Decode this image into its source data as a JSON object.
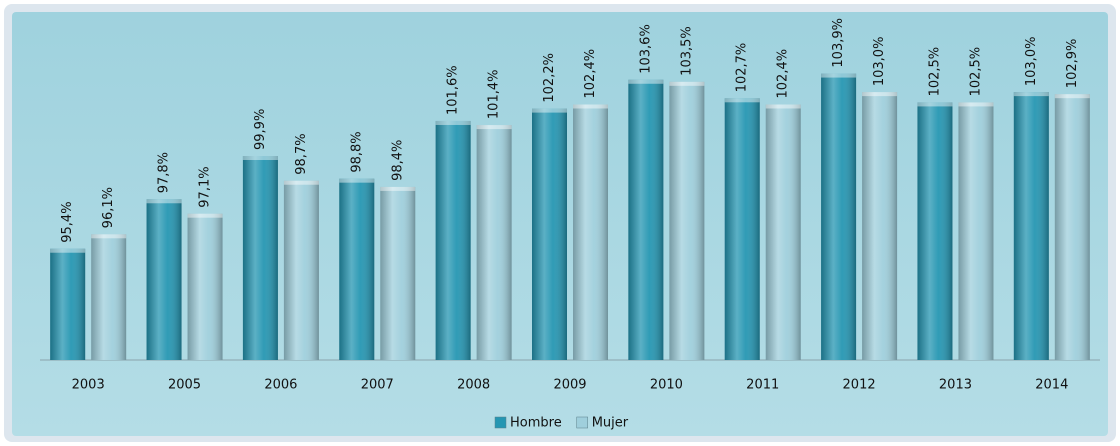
{
  "chart_data": {
    "type": "bar",
    "categories": [
      "2003",
      "2005",
      "2006",
      "2007",
      "2008",
      "2009",
      "2010",
      "2011",
      "2012",
      "2013",
      "2014"
    ],
    "series": [
      {
        "name": "Hombre",
        "color": "#2596b2",
        "values": [
          95.4,
          97.8,
          99.9,
          98.8,
          101.6,
          102.2,
          103.6,
          102.7,
          103.9,
          102.5,
          103.0
        ],
        "value_labels": [
          "95,4%",
          "97,8%",
          "99,9%",
          "98,8%",
          "101,6%",
          "102,2%",
          "103,6%",
          "102,7%",
          "103,9%",
          "102,5%",
          "103,0%"
        ]
      },
      {
        "name": "Mujer",
        "color": "#9fcfdc",
        "values": [
          96.1,
          97.1,
          98.7,
          98.4,
          101.4,
          102.4,
          103.5,
          102.4,
          103.0,
          102.5,
          102.9
        ],
        "value_labels": [
          "96,1%",
          "97,1%",
          "98,7%",
          "98,4%",
          "101,4%",
          "102,4%",
          "103,5%",
          "102,4%",
          "103,0%",
          "102,5%",
          "102,9%"
        ]
      }
    ],
    "ylim": [
      90,
      106.5
    ],
    "legend": "bottom"
  }
}
